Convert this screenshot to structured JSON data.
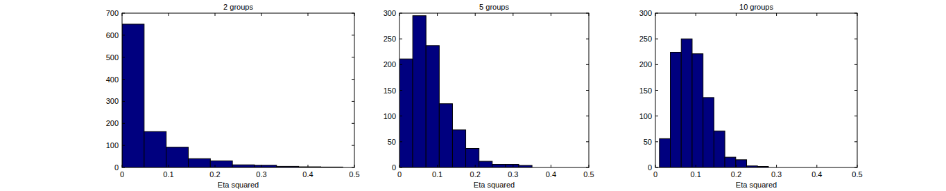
{
  "chart_data": [
    {
      "type": "histogram",
      "title": "2 groups",
      "x_label": "Eta squared",
      "bins": [
        0,
        0.0475,
        0.095,
        0.1425,
        0.19,
        0.2375,
        0.285,
        0.3325,
        0.38,
        0.4275,
        0.475
      ],
      "values": [
        650,
        163,
        92,
        40,
        30,
        12,
        10,
        5,
        3,
        2
      ],
      "color": "#00007f",
      "xlim": [
        0,
        0.5
      ],
      "ylim": [
        0,
        700
      ],
      "xticks": [
        0,
        0.1,
        0.2,
        0.3,
        0.4,
        0.5
      ],
      "yticks": [
        0,
        100,
        200,
        300,
        400,
        500,
        600,
        700
      ]
    },
    {
      "type": "histogram",
      "title": "5 groups",
      "x_label": "Eta squared",
      "bins": [
        0,
        0.035,
        0.07,
        0.105,
        0.14,
        0.175,
        0.21,
        0.245,
        0.28,
        0.315,
        0.35
      ],
      "values": [
        211,
        295,
        237,
        124,
        73,
        37,
        12,
        6,
        6,
        4
      ],
      "color": "#00007f",
      "xlim": [
        0,
        0.5
      ],
      "ylim": [
        0,
        300
      ],
      "xticks": [
        0,
        0.1,
        0.2,
        0.3,
        0.4,
        0.5
      ],
      "yticks": [
        0,
        50,
        100,
        150,
        200,
        250,
        300
      ]
    },
    {
      "type": "histogram",
      "title": "10 groups",
      "x_label": "Eta squared",
      "bins": [
        0.01,
        0.037,
        0.064,
        0.091,
        0.118,
        0.145,
        0.172,
        0.199,
        0.226,
        0.253,
        0.28
      ],
      "values": [
        56,
        224,
        250,
        221,
        136,
        71,
        20,
        15,
        3,
        2
      ],
      "color": "#00007f",
      "xlim": [
        0,
        0.5
      ],
      "ylim": [
        0,
        300
      ],
      "xticks": [
        0,
        0.1,
        0.2,
        0.3,
        0.4,
        0.5
      ],
      "yticks": [
        0,
        50,
        100,
        150,
        200,
        250,
        300
      ]
    }
  ]
}
